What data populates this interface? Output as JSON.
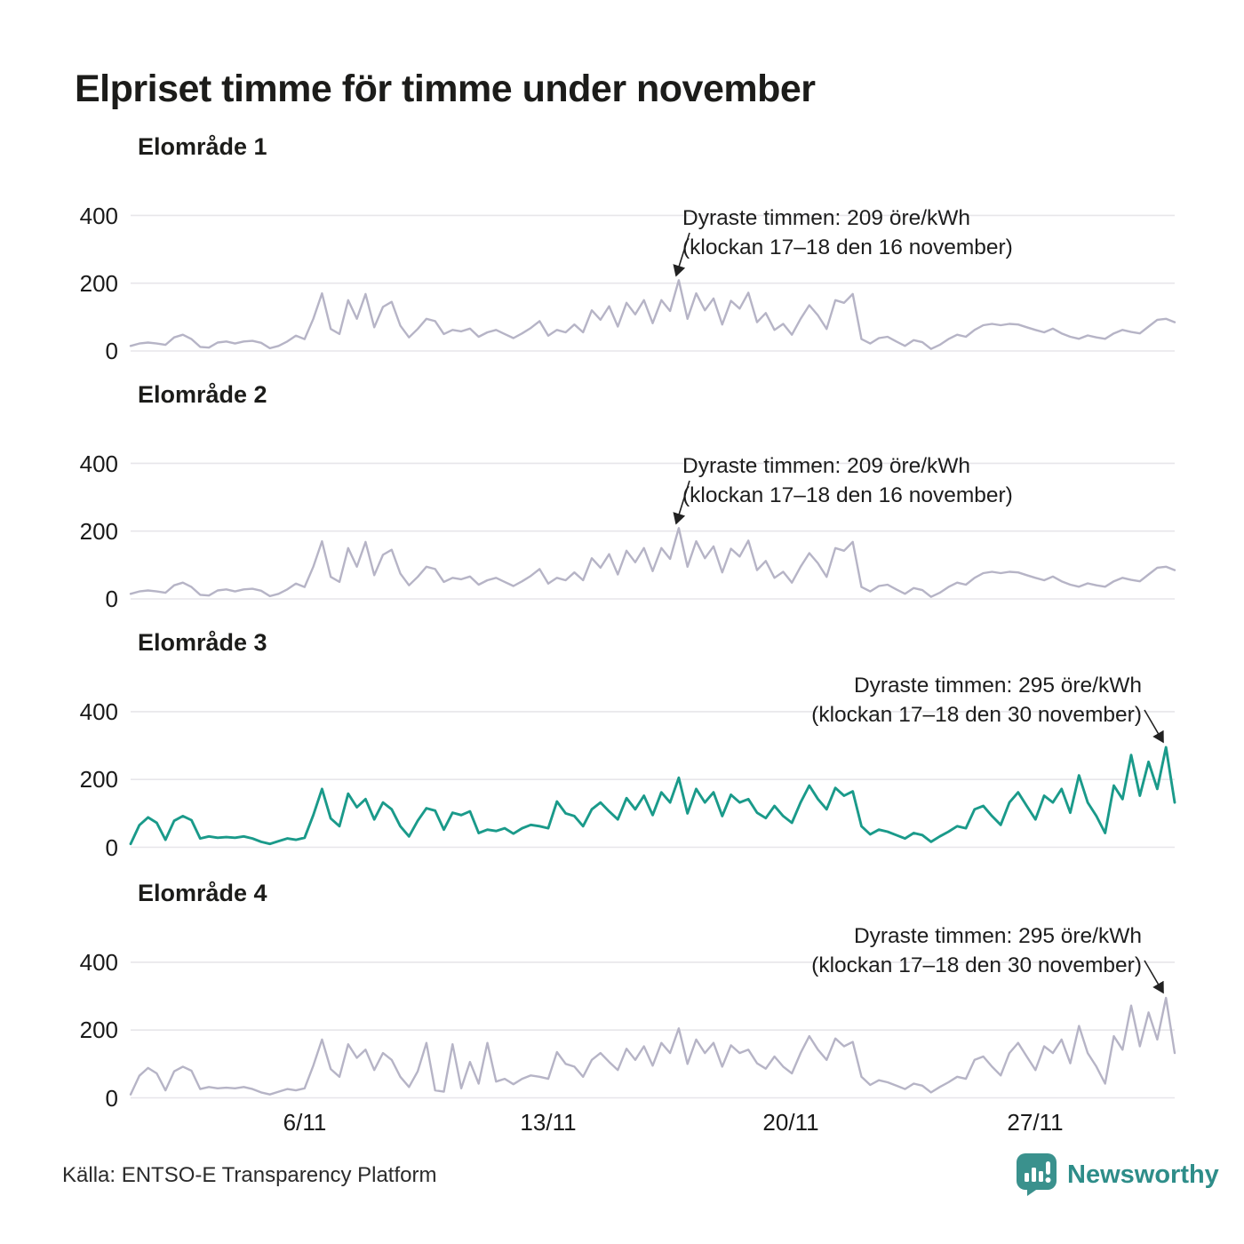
{
  "title": "Elpriset timme för timme under november",
  "source": "Källa: ENTSO-E Transparency Platform",
  "logo": {
    "text": "Newsworthy",
    "color": "#2e8d89",
    "icon": "bar-chart-speech-bubble-icon"
  },
  "y_axis": {
    "tick_labels": [
      "400",
      "200",
      "0"
    ],
    "min": 0,
    "max": 400,
    "grid_values": [
      0,
      200,
      400
    ]
  },
  "x_axis": {
    "tick_labels": [
      "6/11",
      "13/11",
      "20/11",
      "27/11"
    ],
    "range": "1 november – 30 november, timvärden"
  },
  "colors": {
    "line_gray": "#b6b4c6",
    "line_teal": "#1a9a8a",
    "grid": "#e7e6ea",
    "annotation_arrow": "#222222"
  },
  "chart_data": [
    {
      "type": "line",
      "title": "Elområde 1",
      "unit": "öre/kWh",
      "color": "#b6b4c6",
      "sampling": "estimated every 6 hours, 1 nov 00:00 – 1 dec 00:00",
      "ylim": [
        0,
        450
      ],
      "max_point": {
        "value": 209,
        "time": "17–18 den 16 november"
      },
      "annotation": {
        "line1": "Dyraste timmen: 209 öre/kWh",
        "line2": "(klockan 17–18 den 16 november)"
      },
      "values": [
        15,
        22,
        25,
        22,
        18,
        40,
        48,
        35,
        12,
        10,
        25,
        28,
        22,
        28,
        30,
        24,
        8,
        15,
        28,
        45,
        35,
        95,
        170,
        65,
        50,
        150,
        95,
        168,
        70,
        130,
        145,
        75,
        40,
        65,
        95,
        88,
        50,
        62,
        58,
        66,
        42,
        55,
        62,
        50,
        38,
        52,
        68,
        88,
        45,
        62,
        55,
        78,
        55,
        120,
        92,
        132,
        72,
        142,
        108,
        150,
        82,
        150,
        118,
        209,
        95,
        170,
        120,
        155,
        78,
        148,
        125,
        172,
        85,
        112,
        62,
        80,
        48,
        95,
        135,
        105,
        65,
        150,
        142,
        168,
        35,
        22,
        38,
        42,
        28,
        15,
        32,
        26,
        6,
        18,
        35,
        48,
        42,
        62,
        76,
        80,
        76,
        80,
        78,
        70,
        62,
        55,
        66,
        52,
        42,
        36,
        46,
        40,
        36,
        52,
        62,
        56,
        52,
        72,
        92,
        95,
        85
      ]
    },
    {
      "type": "line",
      "title": "Elområde 2",
      "unit": "öre/kWh",
      "color": "#b6b4c6",
      "sampling": "estimated every 6 hours, 1 nov 00:00 – 1 dec 00:00",
      "ylim": [
        0,
        450
      ],
      "max_point": {
        "value": 209,
        "time": "17–18 den 16 november"
      },
      "annotation": {
        "line1": "Dyraste timmen: 209 öre/kWh",
        "line2": "(klockan 17–18 den 16 november)"
      },
      "values": [
        15,
        22,
        25,
        22,
        18,
        40,
        48,
        35,
        12,
        10,
        25,
        28,
        22,
        28,
        30,
        24,
        8,
        15,
        28,
        45,
        35,
        95,
        170,
        65,
        50,
        150,
        95,
        168,
        70,
        130,
        145,
        75,
        40,
        65,
        95,
        88,
        50,
        62,
        58,
        66,
        42,
        55,
        62,
        50,
        38,
        52,
        68,
        88,
        45,
        62,
        55,
        78,
        55,
        120,
        92,
        132,
        72,
        142,
        108,
        150,
        82,
        150,
        118,
        209,
        95,
        170,
        120,
        155,
        78,
        148,
        125,
        172,
        85,
        112,
        62,
        80,
        48,
        95,
        135,
        105,
        65,
        150,
        142,
        168,
        35,
        22,
        38,
        42,
        28,
        15,
        32,
        26,
        6,
        18,
        35,
        48,
        42,
        62,
        76,
        80,
        76,
        80,
        78,
        70,
        62,
        55,
        66,
        52,
        42,
        36,
        46,
        40,
        36,
        52,
        62,
        56,
        52,
        72,
        92,
        95,
        85
      ]
    },
    {
      "type": "line",
      "title": "Elområde 3",
      "unit": "öre/kWh",
      "color": "#1a9a8a",
      "sampling": "estimated every 6 hours, 1 nov 00:00 – 1 dec 00:00",
      "ylim": [
        0,
        450
      ],
      "max_point": {
        "value": 295,
        "time": "17–18 den 30 november"
      },
      "annotation": {
        "line1": "Dyraste timmen: 295 öre/kWh",
        "line2": "(klockan 17–18 den 30 november)"
      },
      "values": [
        10,
        65,
        88,
        72,
        22,
        78,
        92,
        80,
        26,
        32,
        28,
        30,
        28,
        32,
        26,
        16,
        10,
        18,
        26,
        22,
        28,
        95,
        172,
        85,
        62,
        158,
        118,
        142,
        82,
        132,
        112,
        62,
        32,
        78,
        115,
        108,
        52,
        102,
        95,
        106,
        42,
        52,
        48,
        56,
        40,
        56,
        66,
        62,
        56,
        135,
        100,
        92,
        62,
        112,
        132,
        106,
        82,
        145,
        112,
        152,
        95,
        162,
        132,
        205,
        100,
        172,
        132,
        162,
        92,
        155,
        132,
        142,
        102,
        86,
        122,
        92,
        72,
        132,
        182,
        142,
        112,
        175,
        152,
        165,
        62,
        38,
        52,
        46,
        36,
        26,
        42,
        36,
        16,
        32,
        46,
        62,
        56,
        112,
        122,
        92,
        66,
        132,
        162,
        122,
        82,
        152,
        132,
        172,
        102,
        212,
        132,
        92,
        42,
        182,
        142,
        272,
        152,
        252,
        172,
        295,
        132
      ]
    },
    {
      "type": "line",
      "title": "Elområde 4",
      "unit": "öre/kWh",
      "color": "#b6b4c6",
      "sampling": "estimated every 6 hours, 1 nov 00:00 – 1 dec 00:00",
      "ylim": [
        0,
        450
      ],
      "max_point": {
        "value": 295,
        "time": "17–18 den 30 november"
      },
      "annotation": {
        "line1": "Dyraste timmen: 295 öre/kWh",
        "line2": "(klockan 17–18 den 30 november)"
      },
      "values": [
        10,
        65,
        88,
        72,
        22,
        78,
        92,
        80,
        26,
        32,
        28,
        30,
        28,
        32,
        26,
        16,
        10,
        18,
        26,
        22,
        28,
        95,
        172,
        85,
        62,
        158,
        118,
        142,
        82,
        132,
        112,
        62,
        32,
        78,
        162,
        22,
        18,
        158,
        28,
        106,
        42,
        162,
        48,
        56,
        40,
        56,
        66,
        62,
        56,
        135,
        100,
        92,
        62,
        112,
        132,
        106,
        82,
        145,
        112,
        152,
        95,
        162,
        132,
        205,
        100,
        172,
        132,
        162,
        92,
        155,
        132,
        142,
        102,
        86,
        122,
        92,
        72,
        132,
        182,
        142,
        112,
        175,
        152,
        165,
        62,
        38,
        52,
        46,
        36,
        26,
        42,
        36,
        16,
        32,
        46,
        62,
        56,
        112,
        122,
        92,
        66,
        132,
        162,
        122,
        82,
        152,
        132,
        172,
        102,
        212,
        132,
        92,
        42,
        182,
        142,
        272,
        152,
        252,
        172,
        295,
        132
      ]
    }
  ]
}
